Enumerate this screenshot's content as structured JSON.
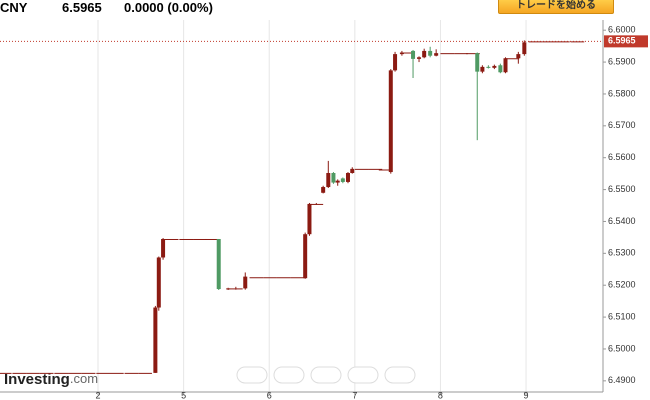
{
  "header": {
    "symbol": "CNY",
    "change": "0.0000 (0.00%)",
    "button": "トレードを始める"
  },
  "watermark": {
    "brand": "Investing",
    "suffix": ".com"
  },
  "chart_data": {
    "type": "candlestick",
    "x": [
      -1.09,
      -0.92,
      -0.76,
      -0.6,
      -0.43,
      -0.27,
      -0.11,
      0.06,
      0.22,
      0.39,
      0.55,
      0.67,
      0.71,
      0.76,
      0.86,
      1.03,
      1.19,
      1.33,
      1.41,
      1.52,
      1.61,
      1.72,
      1.85,
      2.01,
      2.17,
      2.33,
      2.42,
      2.47,
      2.55,
      2.63,
      2.69,
      2.75,
      2.8,
      2.86,
      2.92,
      2.97,
      3.08,
      3.24,
      3.36,
      3.42,
      3.47,
      3.55,
      3.62,
      3.68,
      3.75,
      3.81,
      3.88,
      3.95,
      4.08,
      4.24,
      4.38,
      4.43,
      4.49,
      4.56,
      4.63,
      4.7,
      4.76,
      4.84,
      4.91,
      4.98,
      5.11,
      5.27,
      5.43,
      5.6
    ],
    "open": [
      6.4925,
      6.4925,
      6.4925,
      6.4925,
      6.4925,
      6.4925,
      6.4925,
      6.4925,
      6.4925,
      6.4925,
      6.4925,
      6.4925,
      6.513,
      6.5287,
      6.5345,
      6.5345,
      6.5345,
      6.5345,
      6.5345,
      6.5188,
      6.519,
      6.519,
      6.5225,
      6.5225,
      6.5225,
      6.5225,
      6.5222,
      6.536,
      6.5455,
      6.549,
      6.5508,
      6.5552,
      6.5522,
      6.5535,
      6.5524,
      6.5552,
      6.5565,
      6.5565,
      6.5563,
      6.5555,
      6.5874,
      6.5925,
      6.593,
      6.5935,
      6.591,
      6.5915,
      6.5935,
      6.592,
      6.5928,
      6.5928,
      6.5928,
      6.5928,
      6.587,
      6.5885,
      6.5882,
      6.589,
      6.5868,
      6.5912,
      6.5912,
      6.5925,
      6.5965,
      6.5965,
      6.5965,
      6.5965
    ],
    "high": [
      6.4925,
      6.4925,
      6.4925,
      6.4925,
      6.4925,
      6.4925,
      6.4925,
      6.4925,
      6.4925,
      6.4925,
      6.4925,
      6.5135,
      6.529,
      6.5348,
      6.5345,
      6.5345,
      6.5345,
      6.5345,
      6.5345,
      6.5192,
      6.5195,
      6.524,
      6.5225,
      6.5225,
      6.5225,
      6.5225,
      6.5365,
      6.5458,
      6.5458,
      6.5512,
      6.559,
      6.5555,
      6.5532,
      6.5538,
      6.5555,
      6.557,
      6.5565,
      6.5565,
      6.5563,
      6.5878,
      6.5932,
      6.5935,
      6.593,
      6.5938,
      6.5918,
      6.5942,
      6.5948,
      6.594,
      6.5928,
      6.5928,
      6.5928,
      6.593,
      6.589,
      6.589,
      6.5892,
      6.5895,
      6.5915,
      6.5912,
      6.5932,
      6.5968,
      6.5965,
      6.5965,
      6.5965,
      6.5965
    ],
    "low": [
      6.4925,
      6.4925,
      6.4925,
      6.4925,
      6.4925,
      6.4925,
      6.4925,
      6.4925,
      6.4925,
      6.4925,
      6.4925,
      6.4925,
      6.512,
      6.528,
      6.5345,
      6.5345,
      6.5345,
      6.5345,
      6.5185,
      6.5185,
      6.5186,
      6.5186,
      6.5225,
      6.5225,
      6.5225,
      6.5225,
      6.522,
      6.5355,
      6.5452,
      6.5488,
      6.5505,
      6.5518,
      6.5512,
      6.552,
      6.552,
      6.555,
      6.5565,
      6.5565,
      6.5563,
      6.555,
      6.587,
      6.592,
      6.593,
      6.585,
      6.59,
      6.5912,
      6.5915,
      6.5918,
      6.5928,
      6.5928,
      6.5928,
      6.5655,
      6.5865,
      6.588,
      6.5878,
      6.5865,
      6.5865,
      6.5912,
      6.5895,
      6.592,
      6.5965,
      6.5965,
      6.5965,
      6.5965
    ],
    "close": [
      6.4925,
      6.4925,
      6.4925,
      6.4925,
      6.4925,
      6.4925,
      6.4925,
      6.4925,
      6.4925,
      6.4925,
      6.4925,
      6.513,
      6.5287,
      6.5345,
      6.5345,
      6.5345,
      6.5345,
      6.5345,
      6.5188,
      6.519,
      6.519,
      6.5227,
      6.5225,
      6.5225,
      6.5225,
      6.5225,
      6.536,
      6.5455,
      6.5455,
      6.5508,
      6.5552,
      6.5522,
      6.5528,
      6.5524,
      6.5552,
      6.5565,
      6.5565,
      6.5565,
      6.5563,
      6.5874,
      6.5925,
      6.593,
      6.593,
      6.591,
      6.5915,
      6.5935,
      6.592,
      6.5928,
      6.5928,
      6.5928,
      6.5928,
      6.587,
      6.5885,
      6.5882,
      6.5888,
      6.5868,
      6.5912,
      6.5912,
      6.5925,
      6.5962,
      6.5965,
      6.5965,
      6.5965,
      6.5965
    ],
    "up_color": "#8b1a12",
    "down_color": "#4f9a63",
    "flat_color": "#8b1a12",
    "xlim": [
      -1.145,
      5.899
    ],
    "xticks": [
      {
        "value": 0,
        "label": "2"
      },
      {
        "value": 1,
        "label": "5"
      },
      {
        "value": 2,
        "label": "6"
      },
      {
        "value": 3,
        "label": "7"
      },
      {
        "value": 4,
        "label": "8"
      },
      {
        "value": 5,
        "label": "9"
      }
    ],
    "ylim": [
      6.4865,
      6.6032
    ],
    "yticks": [
      {
        "value": 6.49,
        "label": "6.4900"
      },
      {
        "value": 6.5,
        "label": "6.5000"
      },
      {
        "value": 6.51,
        "label": "6.5100"
      },
      {
        "value": 6.52,
        "label": "6.5200"
      },
      {
        "value": 6.53,
        "label": "6.5300"
      },
      {
        "value": 6.54,
        "label": "6.5400"
      },
      {
        "value": 6.55,
        "label": "6.5500"
      },
      {
        "value": 6.56,
        "label": "6.5600"
      },
      {
        "value": 6.57,
        "label": "6.5700"
      },
      {
        "value": 6.58,
        "label": "6.5800"
      },
      {
        "value": 6.59,
        "label": "6.5900"
      },
      {
        "value": 6.6,
        "label": "6.6000"
      }
    ],
    "grid": "x",
    "last_price": {
      "value": 6.5965,
      "label": "6.5965"
    },
    "last_price_color": "#c0392b"
  }
}
